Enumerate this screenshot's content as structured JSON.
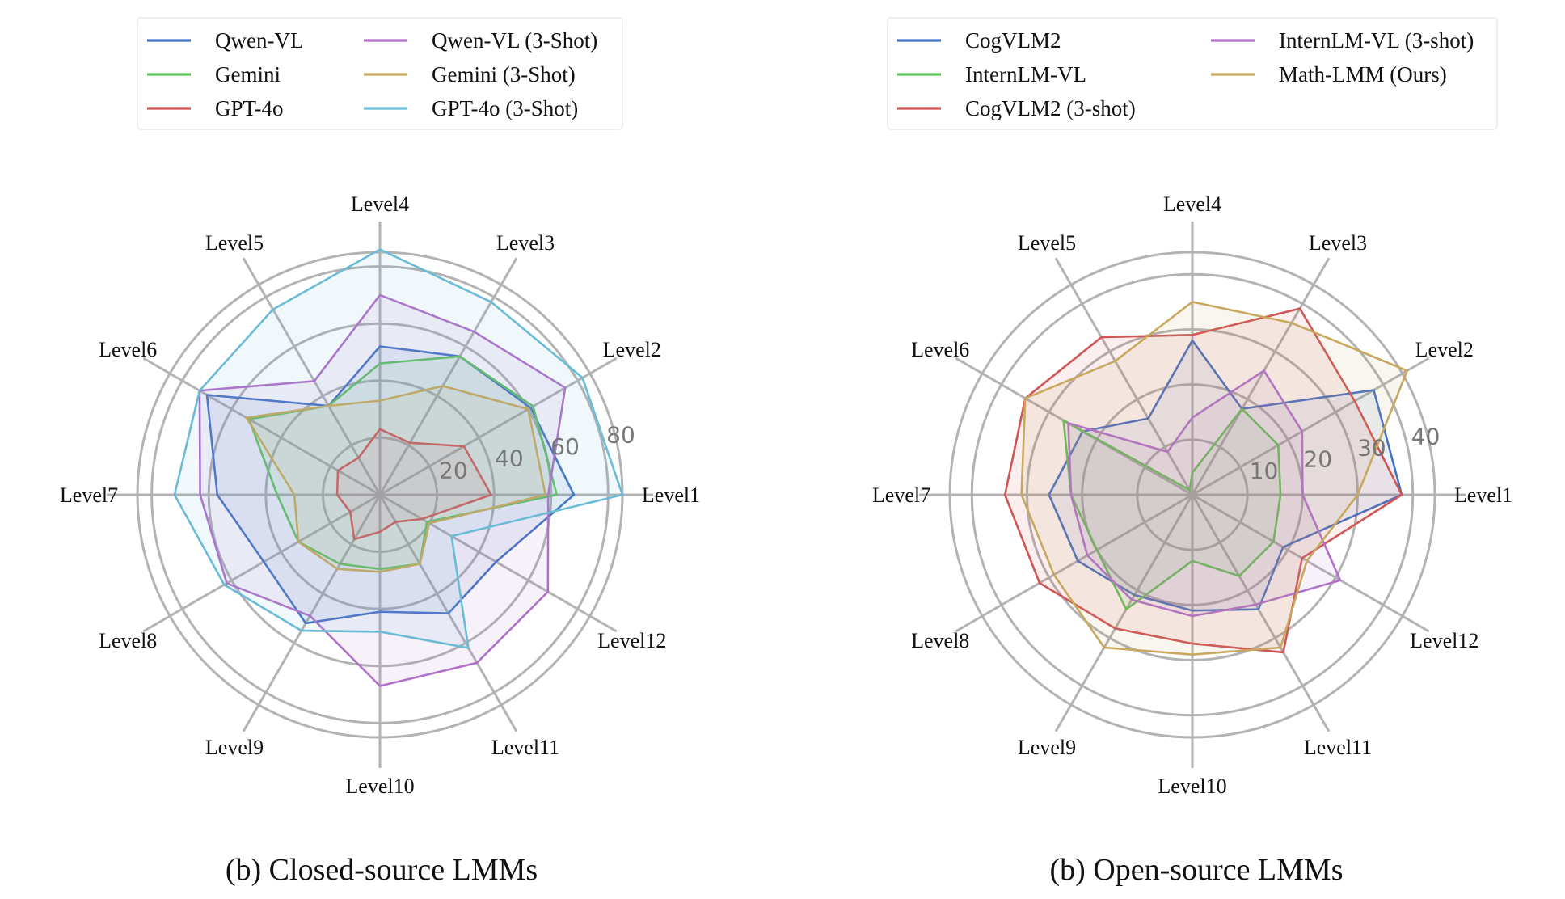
{
  "chart_data": [
    {
      "type": "radar",
      "caption": "(b) Closed-source LMMs",
      "categories": [
        "Level1",
        "Level2",
        "Level3",
        "Level4",
        "Level5",
        "Level6",
        "Level7",
        "Level8",
        "Level9",
        "Level10",
        "Level11",
        "Level12"
      ],
      "rmax": 85,
      "rticks": [
        20,
        40,
        60,
        80
      ],
      "series": [
        {
          "name": "Qwen-VL",
          "color": "#4472c4",
          "values": [
            68,
            61,
            56,
            52,
            36,
            70,
            57,
            47,
            52,
            41,
            48,
            47
          ]
        },
        {
          "name": "Gemini",
          "color": "#5ec45e",
          "values": [
            62,
            62,
            56,
            46,
            36,
            53,
            36,
            33,
            28,
            26,
            28,
            19
          ]
        },
        {
          "name": "GPT-4o",
          "color": "#d05555",
          "values": [
            39,
            34,
            21,
            23,
            15,
            17,
            15,
            12,
            18,
            13,
            11,
            17
          ]
        },
        {
          "name": "Qwen-VL (3-Shot)",
          "color": "#b171c9",
          "values": [
            59,
            75,
            66,
            70,
            46,
            73,
            63,
            62,
            49,
            67,
            68,
            68
          ]
        },
        {
          "name": "Gemini (3-Shot)",
          "color": "#c8a85e",
          "values": [
            58,
            60,
            44,
            33,
            36,
            54,
            30,
            33,
            30,
            27,
            28,
            20
          ]
        },
        {
          "name": "GPT-4o (3-Shot)",
          "color": "#6bbbd6",
          "values": [
            85,
            82,
            78,
            86,
            75,
            73,
            72,
            63,
            55,
            48,
            62,
            29
          ]
        }
      ],
      "legend": {
        "position": "top",
        "columns": 2
      }
    },
    {
      "type": "radar",
      "caption": "(b) Open-source LMMs",
      "categories": [
        "Level1",
        "Level2",
        "Level3",
        "Level4",
        "Level5",
        "Level6",
        "Level7",
        "Level8",
        "Level9",
        "Level10",
        "Level11",
        "Level12"
      ],
      "rmax": 44,
      "rticks": [
        10,
        20,
        30,
        40
      ],
      "series": [
        {
          "name": "CogVLM2",
          "color": "#4472c4",
          "values": [
            38,
            38,
            18,
            28,
            16,
            23,
            26,
            24,
            21,
            21,
            24,
            19
          ]
        },
        {
          "name": "InternLM-VL",
          "color": "#5ec45e",
          "values": [
            16,
            18,
            18,
            4,
            1,
            27,
            22,
            20,
            24,
            12,
            17,
            17
          ]
        },
        {
          "name": "CogVLM2 (3-shot)",
          "color": "#d05555",
          "values": [
            38,
            34,
            39,
            29,
            33,
            35,
            34,
            32,
            28,
            27,
            33,
            23
          ]
        },
        {
          "name": "InternLM-VL (3-shot)",
          "color": "#b171c9",
          "values": [
            20,
            23,
            26,
            14,
            9,
            26,
            22,
            22,
            22,
            22,
            23,
            31
          ]
        },
        {
          "name": "Math-LMM (Ours)",
          "color": "#c8a85e",
          "values": [
            30,
            45,
            36,
            35,
            28,
            35,
            31,
            29,
            32,
            29,
            32,
            24
          ]
        }
      ],
      "legend": {
        "position": "top",
        "columns": 2
      }
    }
  ]
}
